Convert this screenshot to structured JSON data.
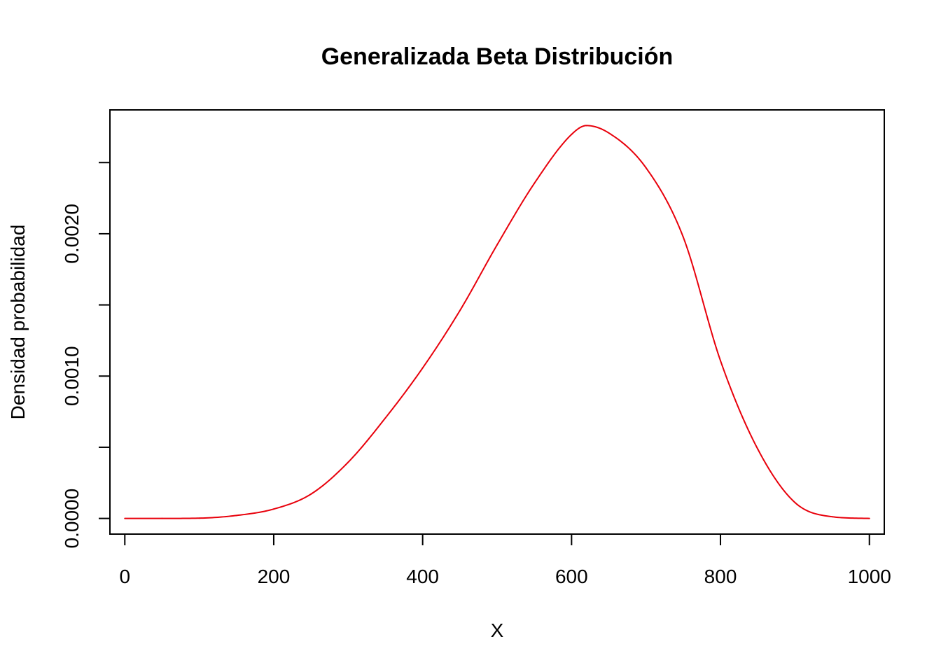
{
  "chart_data": {
    "type": "line",
    "title": "Generalizada Beta Distribución",
    "xlabel": "X",
    "ylabel": "Densidad probabilidad",
    "xlim": [
      -20,
      1020
    ],
    "ylim": [
      -0.00011,
      0.00287
    ],
    "x_ticks": [
      0,
      200,
      400,
      600,
      800,
      1000
    ],
    "x_tick_labels": [
      "0",
      "200",
      "400",
      "600",
      "800",
      "1000"
    ],
    "y_ticks": [
      0,
      0.0005,
      0.001,
      0.0015,
      0.002,
      0.0025
    ],
    "y_tick_labels": [
      "0.0000",
      "",
      "0.0010",
      "",
      "0.0020",
      ""
    ],
    "grid": false,
    "line_color": "#e8000b",
    "series": [
      {
        "x": [
          0,
          50,
          100,
          150,
          200,
          250,
          300,
          350,
          400,
          450,
          500,
          550,
          600,
          620,
          650,
          700,
          750,
          800,
          850,
          900,
          950,
          1000
        ],
        "y": [
          0,
          0,
          2e-06,
          2.1e-05,
          6.6e-05,
          0.000171,
          0.000395,
          0.000706,
          0.001057,
          0.00146,
          0.001922,
          0.002354,
          0.002698,
          0.00276,
          0.002708,
          0.002463,
          0.001976,
          0.001108,
          0.000488,
          0.000112,
          1.2e-05,
          0
        ]
      }
    ]
  }
}
